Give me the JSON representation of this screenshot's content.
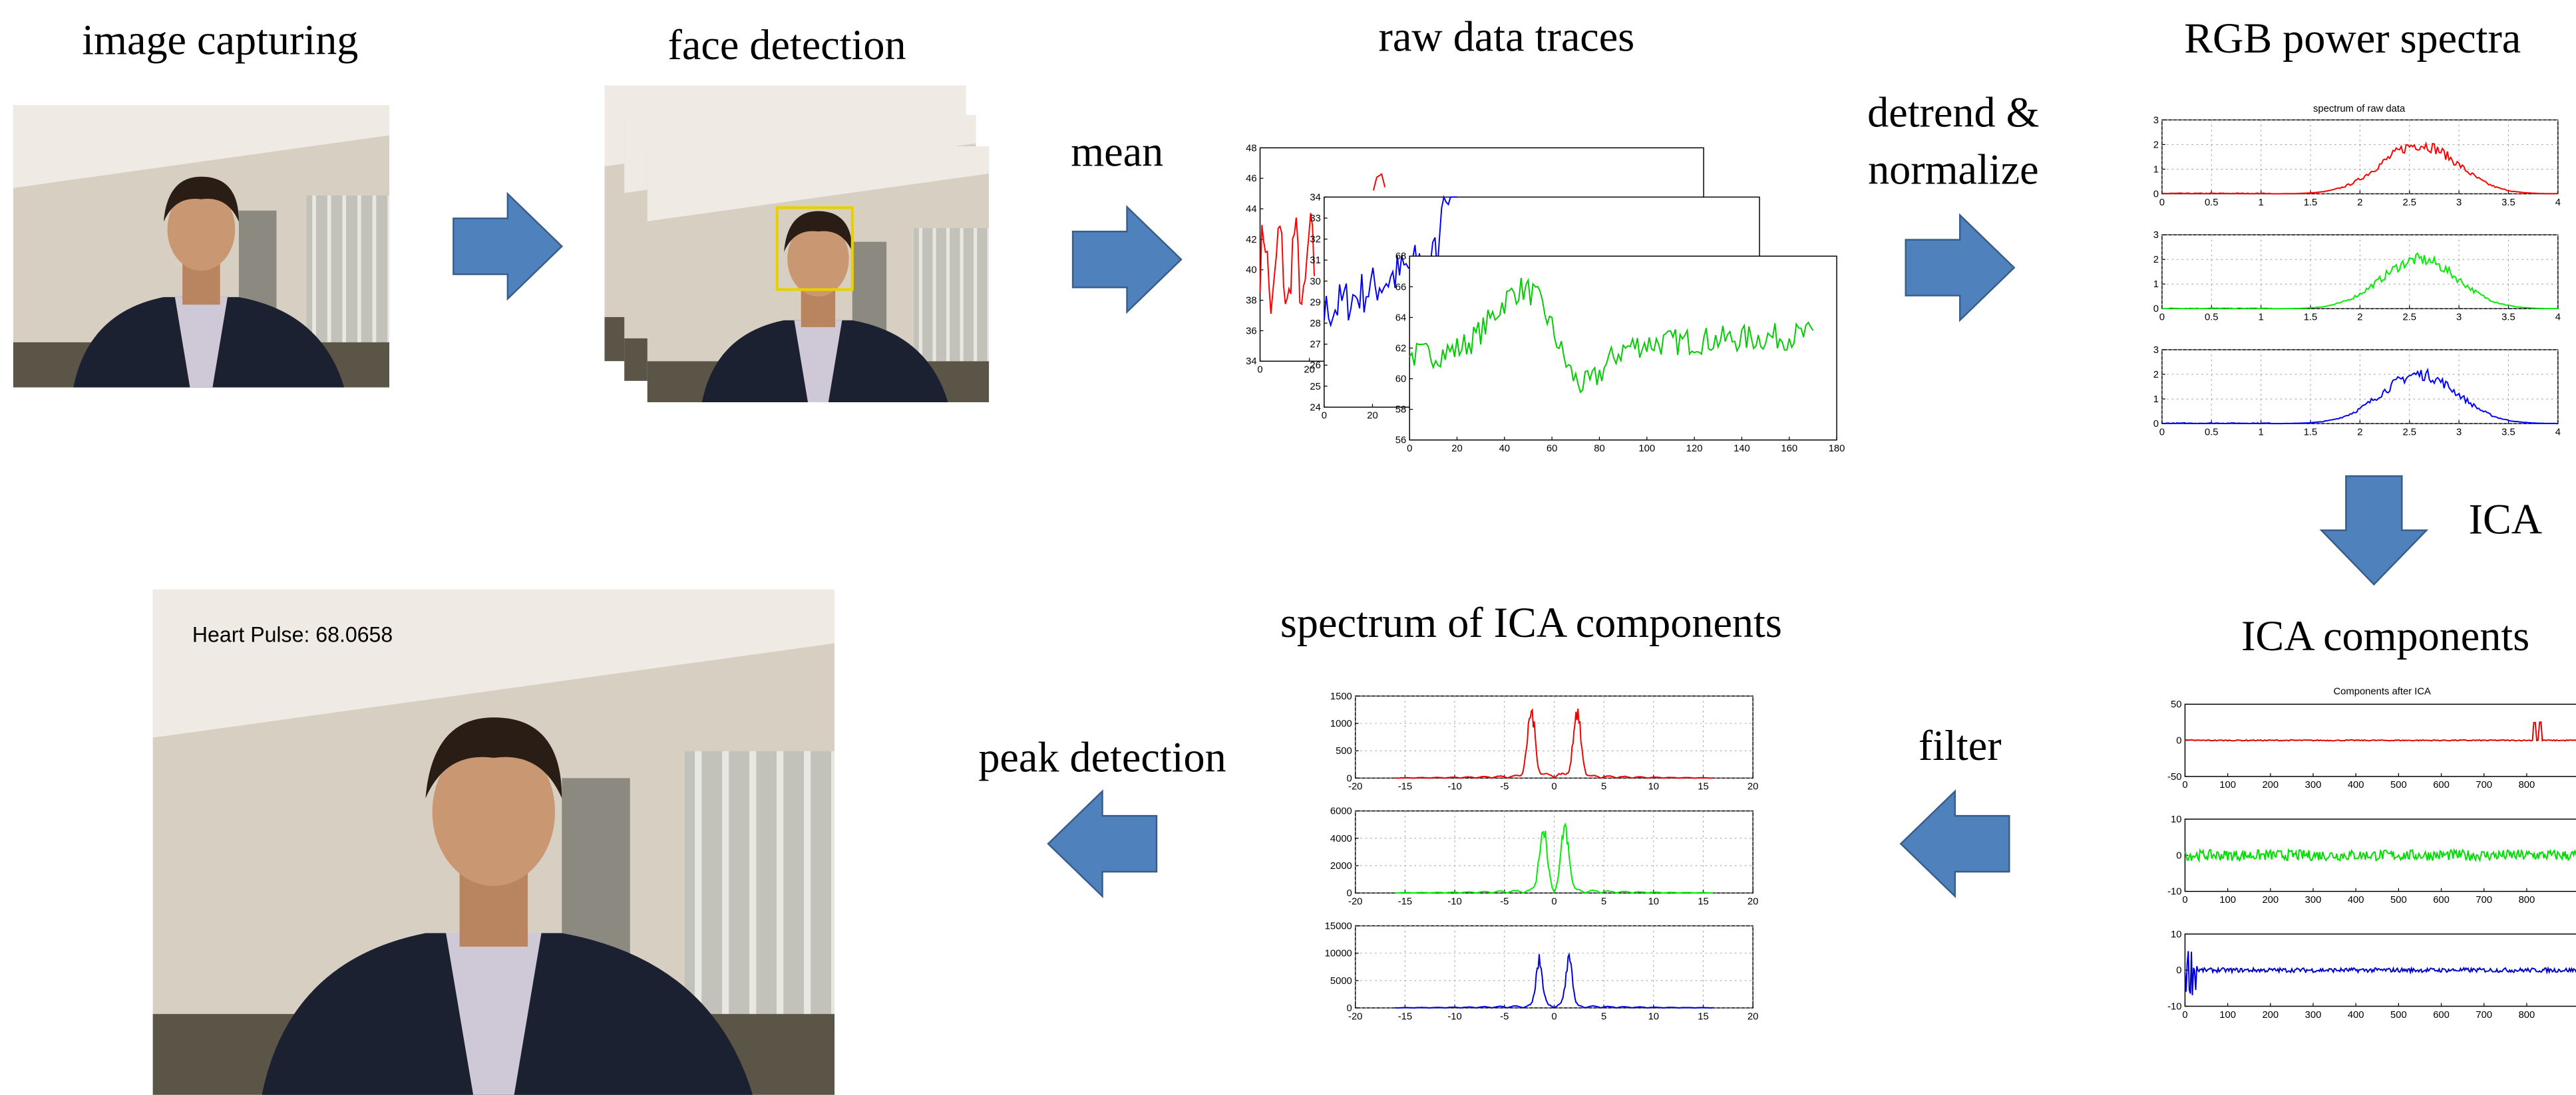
{
  "stages": {
    "capture": "image capturing",
    "face": "face detection",
    "raw": "raw data traces",
    "rgb": "RGB power spectra",
    "ica": "ICA components",
    "spectrum": "spectrum of ICA components"
  },
  "steps": {
    "mean": "mean",
    "detrend": "detrend &",
    "normalize": "normalize",
    "ica": "ICA",
    "filter": "filter",
    "peak": "peak detection"
  },
  "result": "Heart Pulse: 68.0658",
  "raw_plot": {
    "red_yticks": [
      34,
      36,
      38,
      40,
      42,
      44,
      46,
      48
    ],
    "red_xticks": [
      0,
      20
    ],
    "blue_yticks": [
      24,
      25,
      26,
      27,
      28,
      29,
      30,
      31,
      32,
      33,
      34
    ],
    "blue_xticks": [
      0,
      20
    ],
    "green_yticks": [
      56,
      58,
      60,
      62,
      64,
      66,
      68
    ],
    "green_xticks": [
      0,
      20,
      40,
      60,
      80,
      100,
      120,
      140,
      160,
      180
    ]
  },
  "rgb_plot": {
    "title": "spectrum of raw data",
    "xticks": [
      0,
      0.5,
      1,
      1.5,
      2,
      2.5,
      3,
      3.5,
      4
    ],
    "yticks": [
      0,
      1,
      2,
      3
    ]
  },
  "ica_plot": {
    "title": "Components after ICA",
    "xticks": [
      0,
      100,
      200,
      300,
      400,
      500,
      600,
      700,
      800
    ],
    "yticks_1": [
      -50,
      0,
      50
    ],
    "yticks_2": [
      -10,
      0,
      10
    ],
    "yticks_3": [
      -10,
      0,
      10
    ]
  },
  "spec_plot": {
    "xticks": [
      -20,
      -15,
      -10,
      -5,
      0,
      5,
      10,
      15,
      20
    ],
    "yticks_1": [
      0,
      500,
      1000,
      1500
    ],
    "yticks_2": [
      0,
      2000,
      4000,
      6000
    ],
    "yticks_3": [
      0,
      5000,
      10000,
      15000
    ]
  }
}
